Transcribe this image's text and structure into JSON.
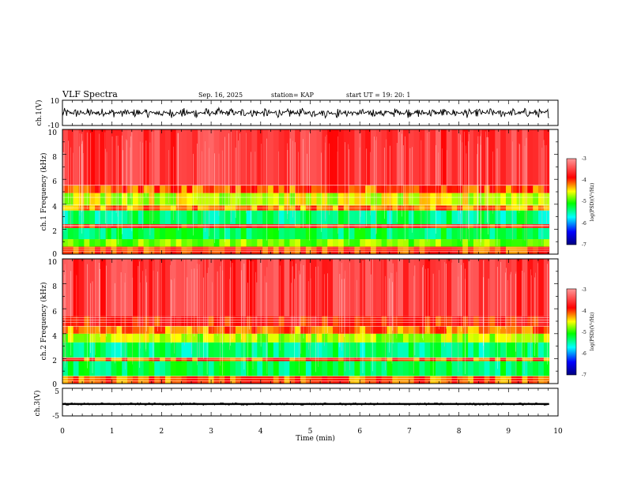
{
  "header": {
    "title": "VLF Spectra",
    "date": "Sep. 16, 2025",
    "station": "station= KAP",
    "start_ut": "start  UT =   19: 20: 1"
  },
  "colors": {
    "spectrogram_scale": [
      "#000080",
      "#0000ff",
      "#00ffff",
      "#00ff00",
      "#ffff00",
      "#ff0000",
      "#ff8080"
    ],
    "waveform": "#000000"
  },
  "chart_data": [
    {
      "type": "line",
      "title": "ch.1 waveform",
      "ylabel": "ch.1(V)",
      "ylim": [
        -10,
        10
      ],
      "y_ticks": [
        "10",
        "-10"
      ],
      "x_range_min": [
        0,
        9.82
      ],
      "signal_level": [
        -4,
        4
      ]
    },
    {
      "type": "heatmap",
      "title": "ch.1 spectrogram",
      "ylabel": "ch.1 Frequency (kHz)",
      "ylim": [
        0,
        10
      ],
      "y_ticks": [
        "10",
        "8",
        "6",
        "4",
        "2",
        "0"
      ],
      "x_range_min": [
        0,
        9.82
      ],
      "colorbar": {
        "label": "log(PSD)(V²/Hz)",
        "min": -7,
        "max": -3,
        "ticks": [
          "-3",
          "-4",
          "-5",
          "-6",
          "-7"
        ]
      },
      "bands": [
        {
          "f_low": 0.0,
          "f_high": 0.6,
          "level": -4.0
        },
        {
          "f_low": 0.6,
          "f_high": 1.2,
          "level": -4.8
        },
        {
          "f_low": 1.2,
          "f_high": 2.1,
          "level": -5.3
        },
        {
          "f_low": 2.1,
          "f_high": 2.4,
          "level": -3.9
        },
        {
          "f_low": 2.4,
          "f_high": 3.5,
          "level": -5.4
        },
        {
          "f_low": 3.5,
          "f_high": 3.9,
          "level": -4.2
        },
        {
          "f_low": 3.9,
          "f_high": 4.9,
          "level": -4.6
        },
        {
          "f_low": 4.9,
          "f_high": 5.5,
          "level": -4.1
        },
        {
          "f_low": 5.5,
          "f_high": 10.0,
          "level": -3.6
        }
      ],
      "lines_khz": [
        0.2,
        0.35,
        0.5,
        2.25,
        2.3,
        3.7,
        3.95,
        4.55,
        5.55
      ]
    },
    {
      "type": "heatmap",
      "title": "ch.2 spectrogram",
      "ylabel": "ch.2 Frequency (kHz)",
      "ylim": [
        0,
        10
      ],
      "y_ticks": [
        "10",
        "8",
        "6",
        "4",
        "2",
        "0"
      ],
      "x_range_min": [
        0,
        9.82
      ],
      "colorbar": {
        "label": "log(PSD)(V²/Hz)",
        "min": -7,
        "max": -3,
        "ticks": [
          "-3",
          "-4",
          "-5",
          "-6",
          "-7"
        ]
      },
      "bands": [
        {
          "f_low": 0.0,
          "f_high": 0.6,
          "level": -4.1
        },
        {
          "f_low": 0.6,
          "f_high": 1.8,
          "level": -5.3
        },
        {
          "f_low": 1.8,
          "f_high": 2.1,
          "level": -4.1
        },
        {
          "f_low": 2.1,
          "f_high": 3.3,
          "level": -5.4
        },
        {
          "f_low": 3.3,
          "f_high": 4.0,
          "level": -4.7
        },
        {
          "f_low": 4.0,
          "f_high": 4.6,
          "level": -4.2
        },
        {
          "f_low": 4.6,
          "f_high": 5.4,
          "level": -3.9
        },
        {
          "f_low": 5.4,
          "f_high": 10.0,
          "level": -3.6
        }
      ],
      "lines_khz": [
        0.2,
        0.4,
        0.6,
        1.95,
        2.05,
        4.6,
        4.9,
        5.1,
        5.3
      ]
    },
    {
      "type": "line",
      "title": "ch.3 waveform",
      "ylabel": "ch.3(V)",
      "xlabel": "Time  (min)",
      "ylim": [
        -5,
        5
      ],
      "y_ticks": [
        "5",
        "-5"
      ],
      "x_ticks": [
        "0",
        "1",
        "2",
        "3",
        "4",
        "5",
        "6",
        "7",
        "8",
        "9",
        "10"
      ],
      "x_range_min": [
        0,
        9.82
      ],
      "signal_center": -0.7,
      "signal_halfwidth": 0.35
    }
  ]
}
